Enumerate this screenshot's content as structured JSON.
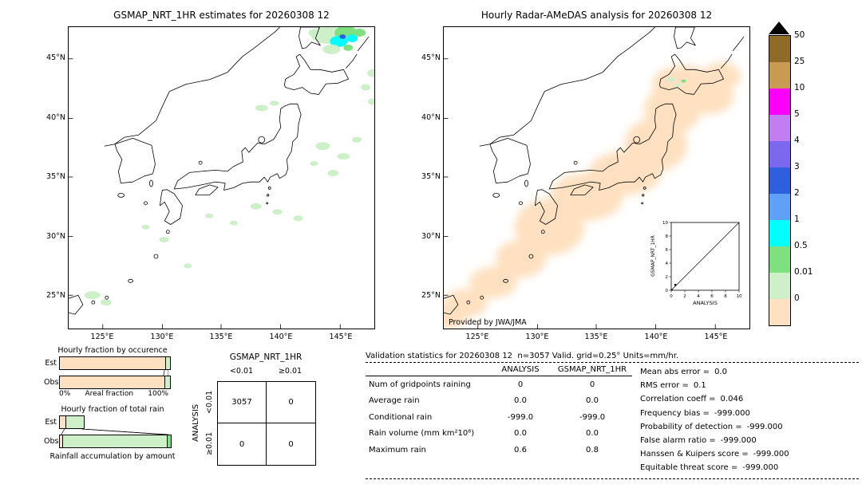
{
  "chart_data": [
    {
      "type": "heatmap",
      "title": "GSMAP_NRT_1HR estimates for 20260308 12",
      "x_ticks": [
        "125°E",
        "130°E",
        "135°E",
        "140°E",
        "145°E"
      ],
      "y_ticks": [
        "45°N",
        "40°N",
        "35°N",
        "30°N",
        "25°N"
      ],
      "colorbar_labels": [
        "50",
        "25",
        "10",
        "5",
        "4",
        "3",
        "2",
        "1",
        "0.5",
        "0.01",
        "0"
      ],
      "units": "mm/hr",
      "description": "Map of GSMaP rain-rate estimates over Japan with scattered light-rain patches (0.01-1 mm/hr), strongest cluster near the northern edge"
    },
    {
      "type": "heatmap",
      "title": "Hourly Radar-AMeDAS analysis for 20260308 12",
      "x_ticks": [
        "125°E",
        "130°E",
        "135°E",
        "140°E",
        "145°E"
      ],
      "y_ticks": [
        "45°N",
        "40°N",
        "35°N",
        "30°N",
        "25°N"
      ],
      "annotation": "Provided by JWA/JMA",
      "units": "mm/hr",
      "description": "Radar-AMeDAS analysis showing a broad trace-rain (0-0.01 mm/hr) band along the Japanese archipelago"
    },
    {
      "type": "scatter",
      "xlabel": "ANALYSIS",
      "ylabel": "GSMAP_NRT_1HR",
      "xlim": [
        0,
        10
      ],
      "ylim": [
        0,
        10
      ],
      "x_ticks": [
        0,
        2,
        4,
        6,
        8,
        10
      ],
      "y_ticks": [
        0,
        2,
        4,
        6,
        8,
        10
      ],
      "diagonal_reference_line": true,
      "points": [
        [
          0.6,
          0.8
        ]
      ]
    },
    {
      "type": "bar",
      "title": "Hourly fraction by occurence",
      "categories": [
        "Est",
        "Obs"
      ],
      "xlabel": "Areal fraction",
      "xlim": [
        "0%",
        "100%"
      ],
      "series": [
        {
          "name": "no rain",
          "values": [
            96.5,
            95.5
          ]
        },
        {
          "name": "0.01-0.5 mm/hr",
          "values": [
            3.5,
            4.5
          ]
        }
      ]
    },
    {
      "type": "bar",
      "title": "Hourly fraction of total rain",
      "categories": [
        "Est",
        "Obs"
      ],
      "note": "Rainfall accumulation by amount",
      "series": [
        {
          "name": "0-0.01 mm/hr",
          "values": [
            5,
            2
          ]
        },
        {
          "name": "0.01-0.5 mm/hr",
          "values": [
            16,
            95
          ]
        },
        {
          "name": "0.5-1 mm/hr",
          "values": [
            0,
            3
          ]
        }
      ]
    },
    {
      "type": "table",
      "title": "GSMAP_NRT_1HR vs ANALYSIS contingency (number of gridpoints)",
      "columns": [
        "<0.01",
        "≥0.01"
      ],
      "rows": [
        "<0.01",
        "≥0.01"
      ],
      "values": [
        [
          3057,
          0
        ],
        [
          0,
          0
        ]
      ]
    },
    {
      "type": "table",
      "title": "Validation statistics for 20260308 12  n=3057 Valid. grid=0.25° Units=mm/hr.",
      "columns": [
        "",
        "ANALYSIS",
        "GSMAP_NRT_1HR"
      ],
      "values": [
        [
          "Num of gridpoints raining",
          0,
          0
        ],
        [
          "Average rain",
          0.0,
          0.0
        ],
        [
          "Conditional rain",
          -999.0,
          -999.0
        ],
        [
          "Rain volume (mm km²10⁶)",
          0.0,
          0.0
        ],
        [
          "Maximum rain",
          0.6,
          0.8
        ]
      ],
      "metrics": {
        "Mean abs error": 0.0,
        "RMS error": 0.1,
        "Correlation coeff": 0.046,
        "Frequency bias": -999.0,
        "Probability of detection": -999.0,
        "False alarm ratio": -999.0,
        "Hanssen & Kuipers score": -999.0,
        "Equitable threat score": -999.0
      }
    }
  ],
  "colors": {
    "peach": "#ffe1c1",
    "pale_green": "#cdf0c8",
    "green": "#7fe07f",
    "cyan": "#00ffff",
    "light_blue": "#5fa1f7",
    "blue": "#2e5fde",
    "purple_blue": "#7b68ee",
    "light_purple": "#c27df2",
    "magenta": "#fa00fa",
    "tan": "#c99b52",
    "brown": "#8f6b28",
    "coastline": "#000000"
  },
  "left_map": {
    "title": "GSMAP_NRT_1HR estimates for 20260308 12",
    "lat_ticks": [
      "45°N",
      "40°N",
      "35°N",
      "30°N",
      "25°N"
    ],
    "lon_ticks": [
      "125°E",
      "130°E",
      "135°E",
      "140°E",
      "145°E"
    ]
  },
  "right_map": {
    "title": "Hourly Radar-AMeDAS analysis for 20260308 12",
    "credit": "Provided by JWA/JMA",
    "lat_ticks": [
      "45°N",
      "40°N",
      "35°N",
      "30°N",
      "25°N"
    ],
    "lon_ticks": [
      "125°E",
      "130°E",
      "135°E",
      "140°E",
      "145°E"
    ],
    "inset": {
      "xlabel": "ANALYSIS",
      "ylabel": "GSMAP_NRT_1HR",
      "x_ticks": [
        "0",
        "2",
        "4",
        "6",
        "8",
        "10"
      ],
      "y_ticks": [
        "0",
        "2",
        "4",
        "6",
        "8",
        "10"
      ]
    }
  },
  "colorbar": {
    "labels": [
      "50",
      "25",
      "10",
      "5",
      "4",
      "3",
      "2",
      "1",
      "0.5",
      "0.01",
      "0"
    ],
    "segment_colors_top_to_bottom": [
      "#8f6b28",
      "#c99b52",
      "#fa00fa",
      "#c27df2",
      "#7b68ee",
      "#2e5fde",
      "#5fa1f7",
      "#00ffff",
      "#7fe07f",
      "#cdf0c8",
      "#ffe1c1"
    ]
  },
  "fraction_charts": {
    "occurrence": {
      "title": "Hourly fraction by occurence",
      "rows": [
        {
          "label": "Est",
          "segments": [
            {
              "color": "#ffe1c1",
              "pct": 96.5
            },
            {
              "color": "#cdf0c8",
              "pct": 3.5
            }
          ]
        },
        {
          "label": "Obs",
          "segments": [
            {
              "color": "#ffe1c1",
              "pct": 95.5
            },
            {
              "color": "#cdf0c8",
              "pct": 4.5
            }
          ]
        }
      ],
      "axis_left": "0%",
      "axis_label": "Areal fraction",
      "axis_right": "100%"
    },
    "total_rain": {
      "title": "Hourly fraction of total rain",
      "rows": [
        {
          "label": "Est",
          "segments": [
            {
              "color": "#ffe1c1",
              "pct": 5
            },
            {
              "color": "#cdf0c8",
              "pct": 16
            }
          ]
        },
        {
          "label": "Obs",
          "segments": [
            {
              "color": "#ffe1c1",
              "pct": 2
            },
            {
              "color": "#cdf0c8",
              "pct": 95
            },
            {
              "color": "#7fe07f",
              "pct": 3
            }
          ]
        }
      ],
      "caption": "Rainfall accumulation by amount"
    }
  },
  "contingency": {
    "title": "GSMAP_NRT_1HR",
    "row_axis": "ANALYSIS",
    "col_labels": [
      "<0.01",
      "≥0.01"
    ],
    "row_labels": [
      "<0.01",
      "≥0.01"
    ],
    "values": [
      [
        "3057",
        "0"
      ],
      [
        "0",
        "0"
      ]
    ]
  },
  "stats": {
    "title": "Validation statistics for 20260308 12  n=3057 Valid. grid=0.25° Units=mm/hr.",
    "col_headers": [
      "ANALYSIS",
      "GSMAP_NRT_1HR"
    ],
    "rows": [
      {
        "label": "Num of gridpoints raining",
        "analysis": "0",
        "gsmap": "0"
      },
      {
        "label": "Average rain",
        "analysis": "0.0",
        "gsmap": "0.0"
      },
      {
        "label": "Conditional rain",
        "analysis": "-999.0",
        "gsmap": "-999.0"
      },
      {
        "label": "Rain volume (mm km²10⁶)",
        "analysis": "0.0",
        "gsmap": "0.0"
      },
      {
        "label": "Maximum rain",
        "analysis": "0.6",
        "gsmap": "0.8"
      }
    ],
    "metrics": [
      {
        "label": "Mean abs error =",
        "value": "0.0"
      },
      {
        "label": "RMS error =",
        "value": "0.1"
      },
      {
        "label": "Correlation coeff =",
        "value": "0.046"
      },
      {
        "label": "Frequency bias =",
        "value": "-999.000"
      },
      {
        "label": "Probability of detection =",
        "value": "-999.000"
      },
      {
        "label": "False alarm ratio =",
        "value": "-999.000"
      },
      {
        "label": "Hanssen & Kuipers score =",
        "value": "-999.000"
      },
      {
        "label": "Equitable threat score =",
        "value": "-999.000"
      }
    ]
  }
}
